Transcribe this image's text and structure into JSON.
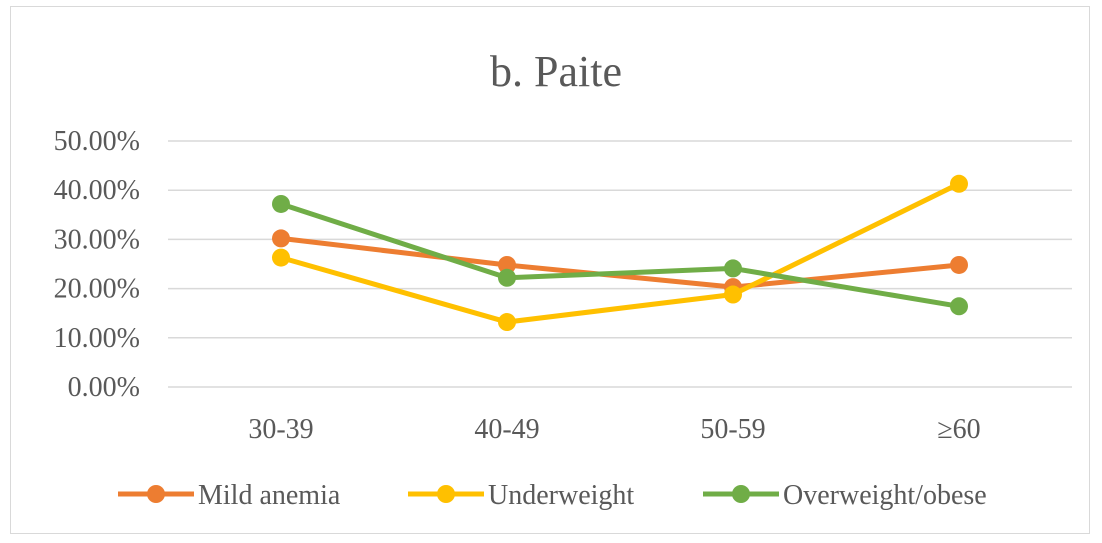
{
  "chart_data": {
    "type": "line",
    "title": "b. Paite",
    "xlabel": "",
    "ylabel": "",
    "categories": [
      "30-39",
      "40-49",
      "50-59",
      "≥60"
    ],
    "ylim": [
      0,
      50
    ],
    "yticks": [
      "0.00%",
      "10.00%",
      "20.00%",
      "30.00%",
      "40.00%",
      "50.00%"
    ],
    "grid": true,
    "legend_position": "bottom",
    "series": [
      {
        "name": "Mild anemia",
        "color": "#ED7D31",
        "values": [
          30.2,
          24.8,
          20.3,
          24.8
        ]
      },
      {
        "name": "Underweight",
        "color": "#FFC000",
        "values": [
          26.3,
          13.2,
          18.8,
          41.3
        ]
      },
      {
        "name": "Overweight/obese",
        "color": "#70AD47",
        "values": [
          37.2,
          22.2,
          24.1,
          16.4
        ]
      }
    ]
  }
}
